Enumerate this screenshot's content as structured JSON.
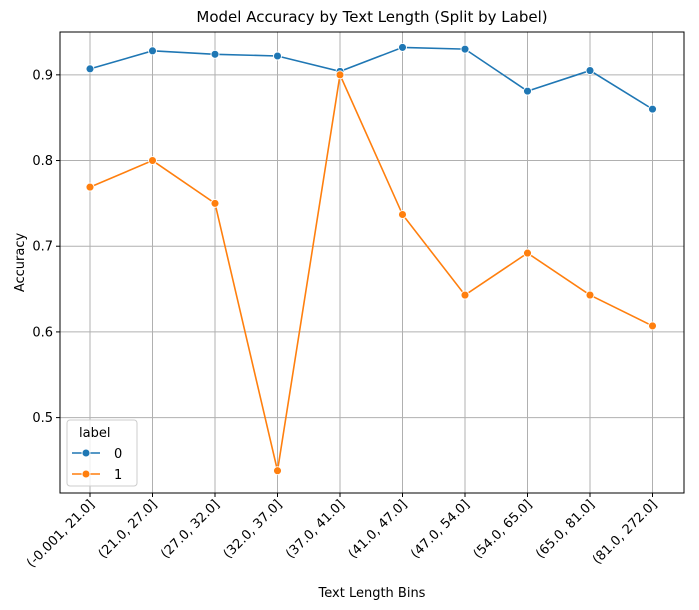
{
  "chart_data": {
    "type": "line",
    "title": "Model Accuracy by Text Length (Split by Label)",
    "xlabel": "Text Length Bins",
    "ylabel": "Accuracy",
    "categories": [
      "(-0.001, 21.0]",
      "(21.0, 27.0]",
      "(27.0, 32.0]",
      "(32.0, 37.0]",
      "(37.0, 41.0]",
      "(41.0, 47.0]",
      "(47.0, 54.0]",
      "(54.0, 65.0]",
      "(65.0, 81.0]",
      "(81.0, 272.0]"
    ],
    "yticks": [
      "0.5",
      "0.6",
      "0.7",
      "0.8",
      "0.9"
    ],
    "ylim": [
      0.412,
      0.95
    ],
    "grid": true,
    "legend": {
      "title": "label",
      "position": "lower-left"
    },
    "series": [
      {
        "name": "0",
        "color": "#1f77b4",
        "values": [
          0.907,
          0.928,
          0.924,
          0.922,
          0.904,
          0.932,
          0.93,
          0.881,
          0.905,
          0.86
        ]
      },
      {
        "name": "1",
        "color": "#ff7f0e",
        "values": [
          0.769,
          0.8,
          0.75,
          0.438,
          0.9,
          0.737,
          0.643,
          0.692,
          0.643,
          0.607
        ]
      }
    ]
  }
}
